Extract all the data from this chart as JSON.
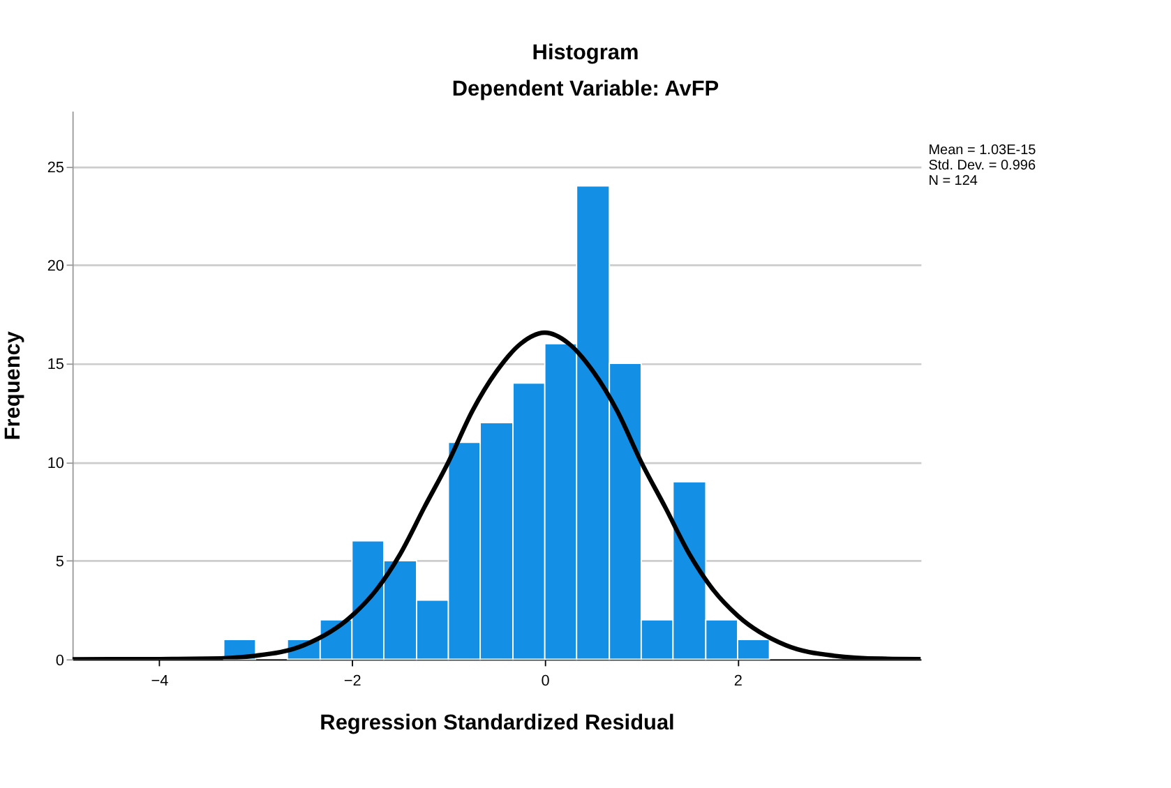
{
  "chart_data": {
    "type": "histogram",
    "title": "Histogram",
    "subtitle": "Dependent Variable: AvFP",
    "xlabel": "Regression Standardized Residual",
    "ylabel": "Frequency",
    "bins": [
      -3.33,
      -3,
      -2.67,
      -2.33,
      -2,
      -1.67,
      -1.33,
      -1,
      -0.67,
      -0.33,
      0,
      0.33,
      0.67,
      1,
      1.33,
      1.67,
      2,
      2.33
    ],
    "values": [
      1,
      0,
      1,
      2,
      6,
      5,
      3,
      11,
      12,
      14,
      16,
      24,
      15,
      2,
      9,
      2,
      1
    ],
    "color": "#1390e6",
    "series": [
      {
        "type": "line",
        "color": "#000000",
        "x": [
          -4.9,
          -4.5,
          -4,
          -3.5,
          -3,
          -2.5,
          -2,
          -1.75,
          -1.5,
          -1.25,
          -1,
          -0.75,
          -0.5,
          -0.25,
          0,
          0.25,
          0.5,
          0.75,
          1,
          1.25,
          1.5,
          1.75,
          2,
          2.5,
          3,
          3.5,
          3.9
        ],
        "values": [
          0,
          0.01,
          0.01,
          0.03,
          0.18,
          0.71,
          2.21,
          3.5,
          5.33,
          7.7,
          10,
          12.6,
          14.6,
          16,
          16.56,
          16,
          14.6,
          12.6,
          10,
          7.7,
          5.33,
          3.5,
          2.21,
          0.71,
          0.18,
          0.03,
          0.01
        ]
      }
    ],
    "xlim": [
      -4.9,
      3.9
    ],
    "ylim": [
      0,
      27.8
    ],
    "xticks": [
      -4,
      -2,
      0,
      2
    ],
    "yticks": [
      0,
      5,
      10,
      15,
      20,
      25
    ],
    "grid": "y",
    "annotations": [
      "Mean = 1.03E-15",
      "Std. Dev. = 0.996",
      "N = 124"
    ]
  }
}
